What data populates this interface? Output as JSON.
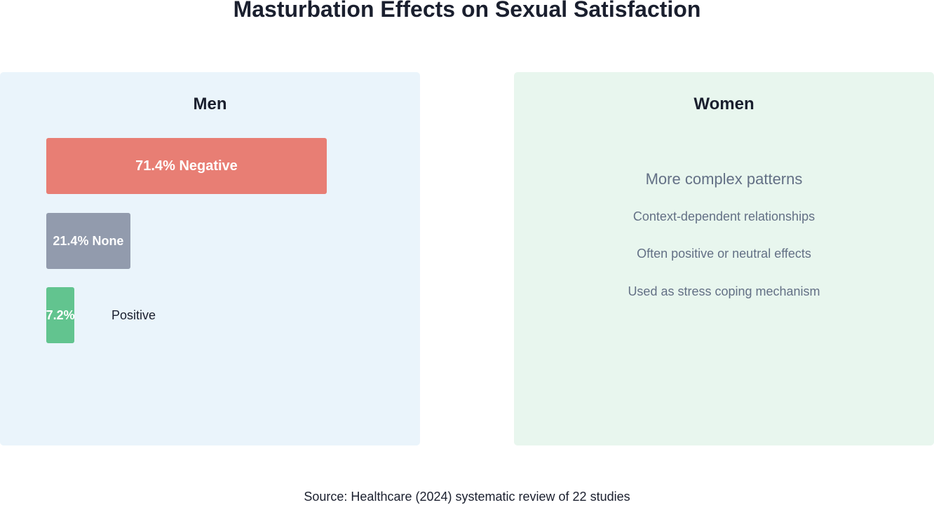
{
  "title": "Masturbation Effects on Sexual Satisfaction",
  "chart_data": {
    "type": "bar",
    "orientation": "horizontal",
    "title": "Masturbation Effects on Sexual Satisfaction",
    "group": "Men",
    "categories": [
      "Negative",
      "None",
      "Positive"
    ],
    "values": [
      71.4,
      21.4,
      7.2
    ],
    "unit": "%",
    "bar_labels": [
      "71.4% Negative",
      "21.4% None",
      "7.2%"
    ],
    "outside_labels": [
      "",
      "",
      "Positive"
    ],
    "colors": [
      "#e87e74",
      "#929bad",
      "#62c48f"
    ],
    "xlim": [
      0,
      71.4
    ],
    "grid": false
  },
  "men": {
    "title": "Men"
  },
  "women": {
    "title": "Women",
    "heading": "More complex patterns",
    "points": [
      "Context-dependent relationships",
      "Often positive or neutral effects",
      "Used as stress coping mechanism"
    ]
  },
  "source": "Source: Healthcare (2024) systematic review of 22 studies",
  "colors": {
    "men_panel": "#eaf4fb",
    "women_panel": "#e8f6ee",
    "negative": "#e87e74",
    "none": "#929bad",
    "positive": "#62c48f"
  }
}
